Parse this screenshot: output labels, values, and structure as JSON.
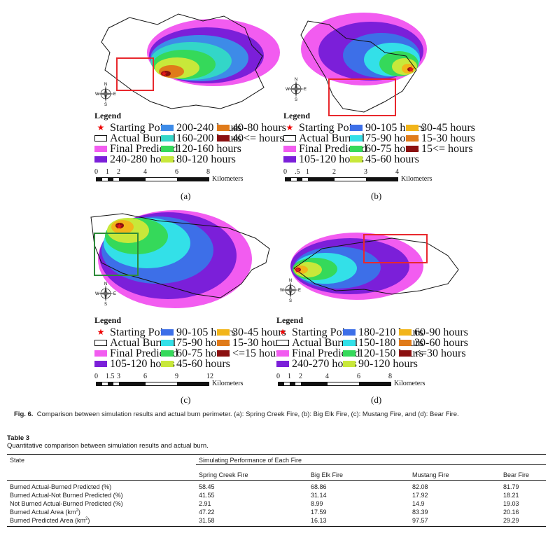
{
  "figure": {
    "panels": [
      {
        "label": "(a)",
        "legend_title": "Legend",
        "legend_items": [
          {
            "label": "Starting Point",
            "kind": "star",
            "color": "#e31a1c"
          },
          {
            "label": "Actual Burned",
            "kind": "outline",
            "color": "#000000"
          },
          {
            "label": "Final Predicted",
            "kind": "fill",
            "color": "#f25cf0"
          },
          {
            "label": "240-280 hours",
            "kind": "fill",
            "color": "#7b1fd9"
          },
          {
            "label": "200-240 hours",
            "kind": "fill",
            "color": "#3d8be8"
          },
          {
            "label": "160-200 hours",
            "kind": "fill",
            "color": "#33d6c8"
          },
          {
            "label": "120-160 hours",
            "kind": "fill",
            "color": "#35d95a"
          },
          {
            "label": "80-120 hours",
            "kind": "fill",
            "color": "#c8e83a"
          },
          {
            "label": "40-80 hours",
            "kind": "fill",
            "color": "#e07b1a"
          },
          {
            "label": "40<= hours",
            "kind": "fill",
            "color": "#8b1010"
          }
        ],
        "scale_ticks": [
          "0",
          "1",
          "2",
          "4",
          "6",
          "8"
        ],
        "scale_unit": "Kilometers"
      },
      {
        "label": "(b)",
        "legend_title": "Legend",
        "legend_items": [
          {
            "label": "Starting Point",
            "kind": "star",
            "color": "#e31a1c"
          },
          {
            "label": "Actual Burned",
            "kind": "outline",
            "color": "#000000"
          },
          {
            "label": "Final Predicted",
            "kind": "fill",
            "color": "#f25cf0"
          },
          {
            "label": "105-120 hours",
            "kind": "fill",
            "color": "#7b1fd9"
          },
          {
            "label": "90-105 hours",
            "kind": "fill",
            "color": "#3d6fe8"
          },
          {
            "label": "75-90 hours",
            "kind": "fill",
            "color": "#33e0e8"
          },
          {
            "label": "60-75 hours",
            "kind": "fill",
            "color": "#35d95a"
          },
          {
            "label": "45-60 hours",
            "kind": "fill",
            "color": "#c8e83a"
          },
          {
            "label": "30-45 hours",
            "kind": "fill",
            "color": "#f2b51a"
          },
          {
            "label": "15-30 hours",
            "kind": "fill",
            "color": "#e07b1a"
          },
          {
            "label": "15<= hours",
            "kind": "fill",
            "color": "#8b1010"
          }
        ],
        "scale_ticks": [
          "0",
          ".5",
          "1",
          "2",
          "3",
          "4"
        ],
        "scale_unit": "Kilometers"
      },
      {
        "label": "(c)",
        "legend_title": "Legend",
        "legend_items": [
          {
            "label": "Starting Point",
            "kind": "star",
            "color": "#e31a1c"
          },
          {
            "label": "Actual Burned",
            "kind": "outline",
            "color": "#000000"
          },
          {
            "label": "Final Predicted",
            "kind": "fill",
            "color": "#f25cf0"
          },
          {
            "label": "105-120 hours",
            "kind": "fill",
            "color": "#7b1fd9"
          },
          {
            "label": "90-105 hours",
            "kind": "fill",
            "color": "#3d6fe8"
          },
          {
            "label": "75-90 hours",
            "kind": "fill",
            "color": "#33e0e8"
          },
          {
            "label": "60-75 hours",
            "kind": "fill",
            "color": "#35d95a"
          },
          {
            "label": "45-60 hours",
            "kind": "fill",
            "color": "#c8e83a"
          },
          {
            "label": "30-45 hours",
            "kind": "fill",
            "color": "#f2b51a"
          },
          {
            "label": "15-30 hours",
            "kind": "fill",
            "color": "#e07b1a"
          },
          {
            "label": "<=15 hours",
            "kind": "fill",
            "color": "#8b1010"
          }
        ],
        "scale_ticks": [
          "0",
          "1.5",
          "3",
          "6",
          "9",
          "12"
        ],
        "scale_unit": "Kilometers"
      },
      {
        "label": "(d)",
        "legend_title": "Legend",
        "legend_items": [
          {
            "label": "Starting Point",
            "kind": "star",
            "color": "#e31a1c"
          },
          {
            "label": "Actual Burned",
            "kind": "outline",
            "color": "#000000"
          },
          {
            "label": "Final Predicted",
            "kind": "fill",
            "color": "#f25cf0"
          },
          {
            "label": "240-270 hours",
            "kind": "fill",
            "color": "#7b1fd9"
          },
          {
            "label": "180-210 hours",
            "kind": "fill",
            "color": "#3d6fe8"
          },
          {
            "label": "150-180 hours",
            "kind": "fill",
            "color": "#33e0e8"
          },
          {
            "label": "120-150 hours",
            "kind": "fill",
            "color": "#35d95a"
          },
          {
            "label": "90-120 hours",
            "kind": "fill",
            "color": "#c8e83a"
          },
          {
            "label": "60-90 hours",
            "kind": "fill",
            "color": "#f2b51a"
          },
          {
            "label": "30-60 hours",
            "kind": "fill",
            "color": "#e07b1a"
          },
          {
            "label": "<=30 hours",
            "kind": "fill",
            "color": "#8b1010"
          }
        ],
        "scale_ticks": [
          "0",
          "1",
          "2",
          "4",
          "6",
          "8"
        ],
        "scale_unit": "Kilometers"
      }
    ],
    "compass": {
      "n": "N",
      "s": "S",
      "e": "E",
      "w": "W"
    },
    "caption_label": "Fig. 6.",
    "caption_text": "Comparison between simulation results and actual burn perimeter. (a): Spring Creek Fire, (b): Big Elk Fire, (c): Mustang Fire, and (d): Bear Fire.",
    "highlight_red": "#e8282d",
    "highlight_green": "#2e8b3a"
  },
  "table": {
    "title": "Table 3",
    "subtitle": "Quantitative comparison between simulation results and actual burn.",
    "state_header": "State",
    "group_header": "Simulating Performance of Each Fire",
    "columns": [
      "Spring Creek Fire",
      "Big Elk Fire",
      "Mustang Fire",
      "Bear Fire"
    ],
    "rows": [
      {
        "label": "Burned Actual-Burned Predicted (%)",
        "values": [
          "58.45",
          "68.86",
          "82.08",
          "81.79"
        ]
      },
      {
        "label": "Burned Actual-Not Burned Predicted (%)",
        "values": [
          "41.55",
          "31.14",
          "17.92",
          "18.21"
        ]
      },
      {
        "label": "Not Burned Actual-Burned Predicted (%)",
        "values": [
          "2.91",
          "8.99",
          "14.9",
          "19.03"
        ]
      },
      {
        "label": "Burned Actual Area (km",
        "label_sup": "2",
        "label_end": ")",
        "values": [
          "47.22",
          "17.59",
          "83.39",
          "20.16"
        ]
      },
      {
        "label": "Burned Predicted Area (km",
        "label_sup": "2",
        "label_end": ")",
        "values": [
          "31.58",
          "16.13",
          "97.57",
          "29.29"
        ]
      }
    ]
  }
}
